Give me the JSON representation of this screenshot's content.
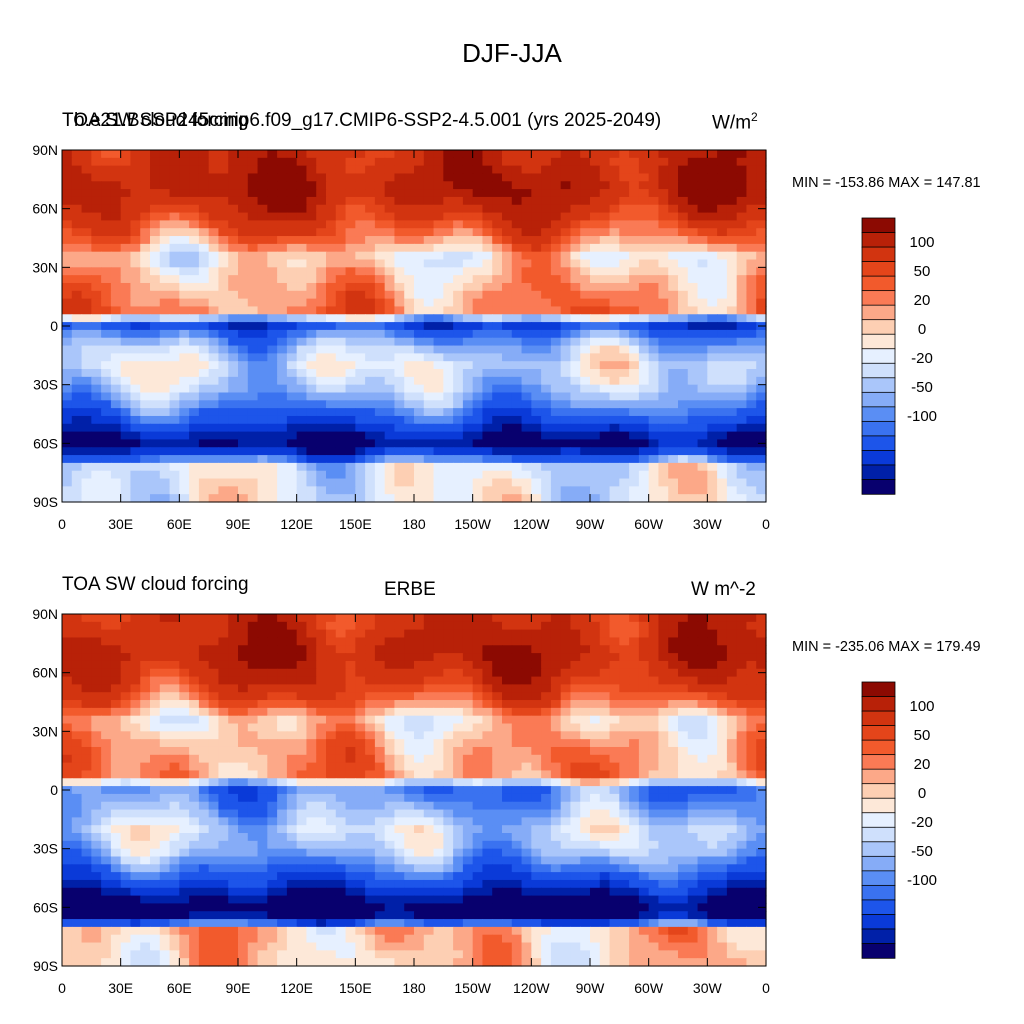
{
  "figure": {
    "title": "DJF-JJA"
  },
  "colors": {
    "levels": [
      -999,
      -120,
      -100,
      -80,
      -60,
      -50,
      -40,
      -30,
      -20,
      -10,
      0,
      10,
      20,
      30,
      40,
      50,
      60,
      80,
      100,
      120
    ],
    "palette": [
      "#08006e",
      "#0020a8",
      "#0a3ad8",
      "#1d55ea",
      "#3a72f0",
      "#5a8ef4",
      "#86acf7",
      "#aac6fa",
      "#cfe0fc",
      "#e6f0ff",
      "#fde8d8",
      "#fdcfb3",
      "#fca888",
      "#fa7a55",
      "#f25a2c",
      "#e4451a",
      "#d23410",
      "#b82108",
      "#8c0a02"
    ],
    "contour_tick_labels": [
      "100",
      "50",
      "20",
      "0",
      "-20",
      "-50",
      "-100"
    ]
  },
  "panels": [
    {
      "id": "model",
      "left_title": "TOA SW cloud forcing",
      "center_title": "b.e21.BSSP245cmip6.f09_g17.CMIP6-SSP2-4.5.001 (yrs 2025-2049)",
      "right_title": "W/m",
      "right_title_sup": "2",
      "minmax_text": "MIN = -153.86 MAX = 147.81",
      "lat_labels": [
        "90N",
        "60N",
        "30N",
        "0",
        "30S",
        "60S",
        "90S"
      ],
      "lon_labels": [
        "0",
        "30E",
        "60E",
        "90E",
        "120E",
        "150E",
        "180",
        "150W",
        "120W",
        "90W",
        "60W",
        "30W",
        "0"
      ]
    },
    {
      "id": "obs",
      "left_title": "TOA SW cloud forcing",
      "center_title": "ERBE",
      "right_title": "W m^-2",
      "right_title_sup": "",
      "minmax_text": "MIN = -235.06 MAX = 179.49",
      "lat_labels": [
        "90N",
        "60N",
        "30N",
        "0",
        "30S",
        "60S",
        "90S"
      ],
      "lon_labels": [
        "0",
        "30E",
        "60E",
        "90E",
        "120E",
        "150E",
        "180",
        "150W",
        "120W",
        "90W",
        "60W",
        "30W",
        "0"
      ]
    }
  ],
  "chart_data": [
    {
      "type": "heatmap",
      "title": "DJF-JJA",
      "subtitle": "b.e21.BSSP245cmip6.f09_g17.CMIP6-SSP2-4.5.001 (yrs 2025-2049)",
      "variable": "TOA SW cloud forcing",
      "units": "W/m2",
      "min": -153.86,
      "max": 147.81,
      "xlim": [
        0,
        360
      ],
      "ylim": [
        -90,
        90
      ],
      "contour_levels": [
        -120,
        -100,
        -80,
        -60,
        -50,
        -40,
        -30,
        -20,
        -10,
        0,
        10,
        20,
        30,
        40,
        50,
        60,
        80,
        100,
        120
      ],
      "zonal_profile_lat": [
        85,
        70,
        55,
        45,
        35,
        25,
        15,
        8,
        0,
        -5,
        -10,
        -20,
        -30,
        -40,
        -50,
        -55,
        -60,
        -65,
        -72,
        -85
      ],
      "zonal_profile_value": [
        80,
        95,
        65,
        40,
        5,
        20,
        30,
        35,
        -80,
        -50,
        -30,
        -10,
        -20,
        -45,
        -80,
        -110,
        -125,
        -90,
        -10,
        -5
      ]
    },
    {
      "type": "heatmap",
      "title": "DJF-JJA",
      "subtitle": "ERBE",
      "variable": "TOA SW cloud forcing",
      "units": "W m^-2",
      "min": -235.06,
      "max": 179.49,
      "xlim": [
        0,
        360
      ],
      "ylim": [
        -90,
        90
      ],
      "contour_levels": [
        -120,
        -100,
        -80,
        -60,
        -50,
        -40,
        -30,
        -20,
        -10,
        0,
        10,
        20,
        30,
        40,
        50,
        60,
        80,
        100,
        120
      ],
      "zonal_profile_lat": [
        85,
        70,
        55,
        45,
        35,
        25,
        15,
        8,
        0,
        -5,
        -10,
        -20,
        -30,
        -40,
        -50,
        -55,
        -60,
        -65,
        -72,
        -85
      ],
      "zonal_profile_value": [
        75,
        90,
        70,
        45,
        8,
        25,
        30,
        30,
        -50,
        -45,
        -35,
        -15,
        -25,
        -55,
        -95,
        -125,
        -140,
        -130,
        20,
        15
      ]
    }
  ]
}
